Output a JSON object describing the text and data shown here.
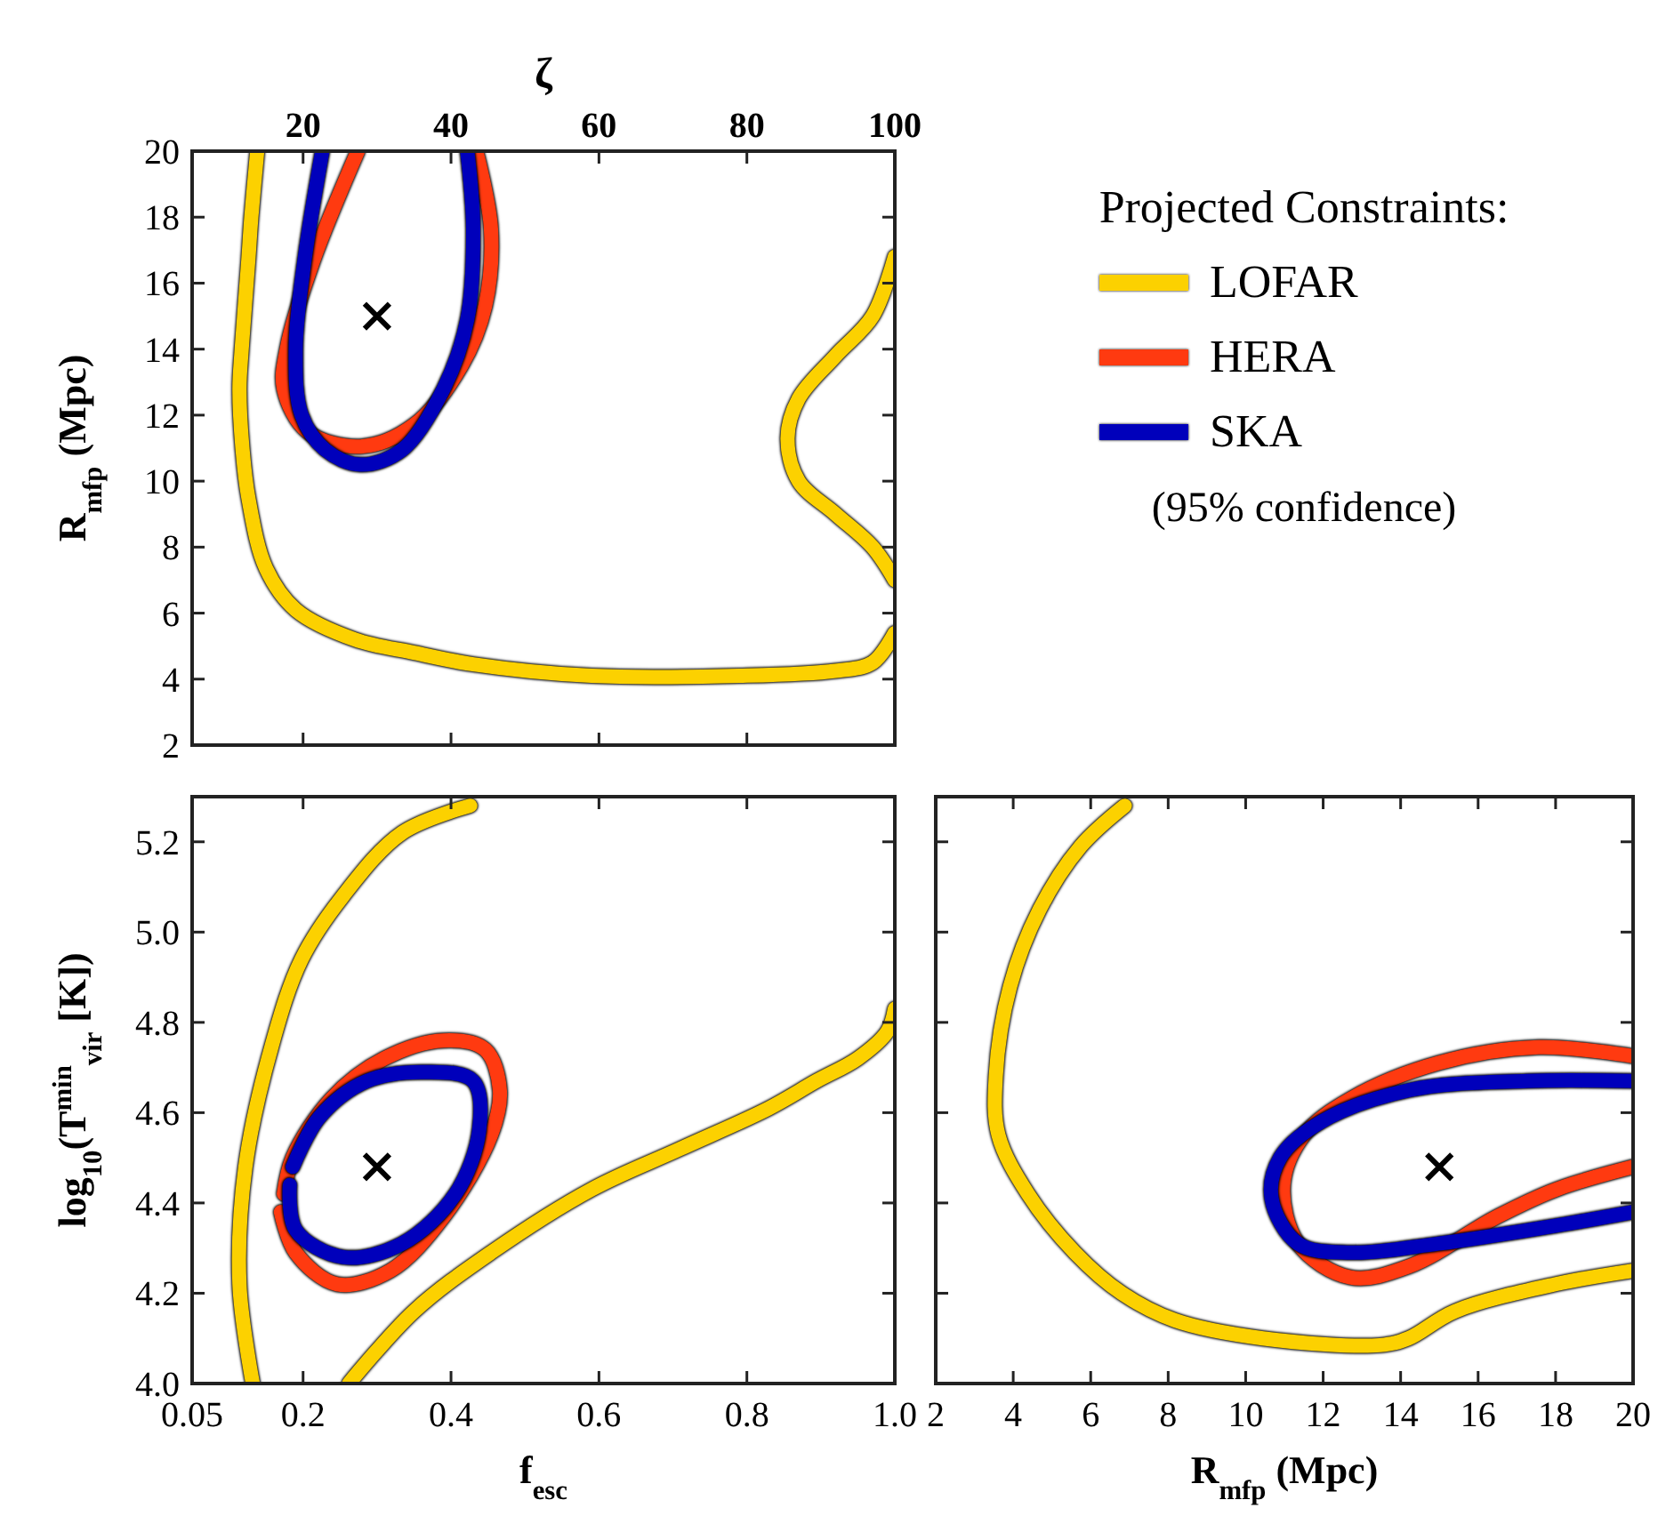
{
  "chart_data": [
    {
      "type": "line",
      "x2label": "ζ",
      "ylabel": "R$_{mfp}$ (Mpc)",
      "xlim": [
        0.05,
        1.0
      ],
      "xticks": [
        0.2,
        0.4,
        0.6,
        0.8
      ],
      "ylim": [
        2,
        20
      ],
      "yticks": [
        2,
        4,
        6,
        8,
        10,
        12,
        14,
        16,
        18,
        20
      ],
      "x2lim": [
        5,
        100
      ],
      "x2ticks": [
        20,
        40,
        60,
        80,
        100
      ],
      "tick_labels": "y",
      "legend": "right",
      "legend_title": "Projected Constraints:",
      "annotations": [
        "(95% confidence)"
      ],
      "series": [
        {
          "name": "LOFAR",
          "color": "#fcd100",
          "x": [
            0.138,
            0.13,
            0.126,
            0.117,
            0.114,
            0.118,
            0.126,
            0.15,
            0.19,
            0.27,
            0.35,
            0.43,
            0.59,
            0.79,
            0.92,
            0.97,
            1.0
          ],
          "values": [
            20,
            18,
            16.7,
            14,
            12.8,
            11,
            9.5,
            7.35,
            6.1,
            5.2,
            4.8,
            4.45,
            4.1,
            4.1,
            4.25,
            4.5,
            5.4
          ]
        },
        {
          "name": "HERA",
          "color": "#ff3a10",
          "x": [
            0.274,
            0.214,
            0.178,
            0.174,
            0.206,
            0.278,
            0.35,
            0.414,
            0.446,
            0.454,
            0.434
          ],
          "values": [
            20,
            16.7,
            14,
            12.8,
            11.5,
            11.05,
            11.7,
            13.5,
            15.3,
            17.65,
            20
          ]
        },
        {
          "name": "SKA",
          "color": "#0000bb",
          "x": [
            0.226,
            0.202,
            0.19,
            0.198,
            0.23,
            0.278,
            0.334,
            0.39,
            0.422,
            0.43,
            0.422
          ],
          "values": [
            20,
            16.7,
            14,
            12,
            10.95,
            10.5,
            10.95,
            12.8,
            14.9,
            17.65,
            20
          ]
        },
        {
          "color": "#fcd100",
          "x": [
            1.0,
            0.97,
            0.92,
            0.87,
            0.855,
            0.87,
            0.92,
            0.97,
            1.0
          ],
          "values": [
            16.8,
            15,
            13.8,
            12.5,
            11.3,
            10,
            9,
            8,
            7
          ]
        },
        {
          "type": "scatter",
          "marker": "cross",
          "color": "#000000",
          "x": [
            0.3
          ],
          "values": [
            15
          ]
        }
      ]
    },
    {
      "type": "line",
      "xlabel": "f$_{esc}$",
      "ylabel": "log$_{10}$(T$^{min}$$_{vir}$ [K])",
      "xlim": [
        0.05,
        1.0
      ],
      "xticks": [
        0.05,
        0.2,
        0.4,
        0.6,
        0.8,
        {
          "value": 1.0,
          "label": "1.0"
        }
      ],
      "ylim": [
        4.0,
        5.3
      ],
      "yticks": [
        {
          "value": 4.0,
          "label": "4.0"
        },
        4.2,
        4.4,
        4.6,
        4.8,
        {
          "value": 5.0,
          "label": "5.0"
        },
        5.2
      ],
      "series": [
        {
          "color": "#fcd100",
          "x": [
            0.132,
            0.114,
            0.122,
            0.158,
            0.198,
            0.254,
            0.334,
            0.426
          ],
          "values": [
            4.0,
            4.22,
            4.48,
            4.75,
            4.94,
            5.08,
            5.22,
            5.28
          ]
        },
        {
          "color": "#fcd100",
          "x": [
            0.262,
            0.35,
            0.454,
            0.59,
            0.71,
            0.83,
            0.894,
            0.95,
            0.99,
            1.0
          ],
          "values": [
            4.0,
            4.16,
            4.29,
            4.43,
            4.52,
            4.61,
            4.67,
            4.72,
            4.78,
            4.83
          ]
        },
        {
          "color": "#ff3a10",
          "x": [
            0.17,
            0.19,
            0.246,
            0.318,
            0.39,
            0.454,
            0.466,
            0.446,
            0.39,
            0.31,
            0.238,
            0.186,
            0.174
          ],
          "values": [
            4.38,
            4.29,
            4.22,
            4.25,
            4.37,
            4.55,
            4.65,
            4.74,
            4.76,
            4.72,
            4.63,
            4.5,
            4.42
          ]
        },
        {
          "color": "#0000bb",
          "x": [
            0.182,
            0.19,
            0.254,
            0.334,
            0.406,
            0.438,
            0.43,
            0.366,
            0.286,
            0.222,
            0.186
          ],
          "values": [
            4.44,
            4.34,
            4.28,
            4.31,
            4.42,
            4.56,
            4.67,
            4.69,
            4.67,
            4.59,
            4.48
          ]
        },
        {
          "type": "scatter",
          "marker": "cross",
          "color": "#000000",
          "x": [
            0.3
          ],
          "values": [
            4.48
          ]
        }
      ]
    },
    {
      "type": "line",
      "xlabel": "R$_{mfp}$ (Mpc)",
      "xlim": [
        2,
        20
      ],
      "xticks": [
        2,
        4,
        6,
        8,
        10,
        12,
        14,
        16,
        18,
        20
      ],
      "ylim": [
        4.0,
        5.3
      ],
      "yticks": [
        4.0,
        4.2,
        4.4,
        4.6,
        4.8,
        5.0,
        5.2
      ],
      "tick_labels": "x",
      "series": [
        {
          "color": "#fcd100",
          "x": [
            6.88,
            5.74,
            4.68,
            3.92,
            3.55,
            3.62,
            4.38,
            5.59,
            6.8,
            8.17,
            10.44,
            13.47,
            14.2,
            15.4,
            18.0,
            20.0
          ],
          "values": [
            5.28,
            5.19,
            5.05,
            4.88,
            4.68,
            4.55,
            4.42,
            4.29,
            4.2,
            4.14,
            4.1,
            4.085,
            4.1,
            4.16,
            4.22,
            4.25
          ]
        },
        {
          "color": "#ff3a10",
          "x": [
            20,
            17.56,
            14.98,
            12.7,
            11.5,
            10.97,
            11.35,
            12.7,
            14.23,
            16.5,
            18.02,
            20
          ],
          "values": [
            4.725,
            4.745,
            4.71,
            4.63,
            4.55,
            4.44,
            4.31,
            4.235,
            4.26,
            4.37,
            4.43,
            4.48
          ]
        },
        {
          "color": "#0000bb",
          "x": [
            20,
            17.26,
            14.23,
            11.95,
            10.89,
            10.67,
            11.35,
            12.7,
            14.98,
            18.02,
            20
          ],
          "values": [
            4.67,
            4.67,
            4.65,
            4.58,
            4.5,
            4.41,
            4.31,
            4.29,
            4.31,
            4.35,
            4.38
          ]
        },
        {
          "type": "scatter",
          "marker": "cross",
          "color": "#000000",
          "x": [
            15
          ],
          "values": [
            4.48
          ]
        }
      ]
    }
  ]
}
